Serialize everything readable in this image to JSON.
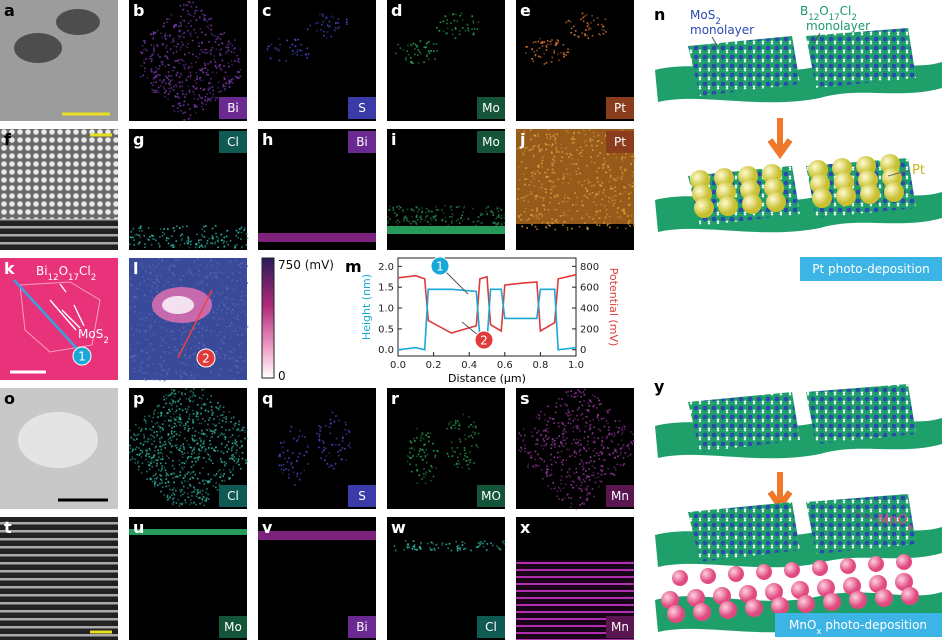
{
  "panel_labels": [
    "a",
    "b",
    "c",
    "d",
    "e",
    "f",
    "g",
    "h",
    "i",
    "j",
    "k",
    "l",
    "m",
    "o",
    "p",
    "q",
    "r",
    "s",
    "t",
    "u",
    "v",
    "w",
    "x",
    "n",
    "y"
  ],
  "element_tags": [
    {
      "text": "Bi",
      "color": "#6a2a92"
    },
    {
      "text": "S",
      "color": "#3a3aa8"
    },
    {
      "text": "Mo",
      "color": "#14553a"
    },
    {
      "text": "Pt",
      "color": "#8a3c1c"
    },
    {
      "text": "Cl",
      "color": "#0f5a52"
    },
    {
      "text": "Bi",
      "color": "#6a2a92"
    },
    {
      "text": "Mo",
      "color": "#14553a"
    },
    {
      "text": "Pt",
      "color": "#8a3c1c"
    },
    {
      "text": "Cl",
      "color": "#0f5a52"
    },
    {
      "text": "S",
      "color": "#3a3aa8"
    },
    {
      "text": "MO",
      "color": "#14553a"
    },
    {
      "text": "Mn",
      "color": "#5a1650"
    },
    {
      "text": "Mo",
      "color": "#14553a"
    },
    {
      "text": "Bi",
      "color": "#6a2a92"
    },
    {
      "text": "Cl",
      "color": "#0f5a52"
    },
    {
      "text": "Mn",
      "color": "#5a1650"
    }
  ],
  "k": {
    "bi_formula": [
      "Bi",
      "12",
      "O",
      "17",
      "Cl",
      "2"
    ],
    "mos2_formula": [
      "MoS",
      "2"
    ],
    "marker": "1"
  },
  "l": {
    "colorbar_max": "750 (mV)",
    "colorbar_min": "0",
    "marker": "2"
  },
  "m": {
    "xlabel": "Distance (μm)",
    "ylabel": "Height (nm)",
    "y2label": "Potential (mV)",
    "xlim": [
      0,
      1
    ],
    "ylim": [
      -0.15,
      2.2
    ],
    "y2lim": [
      -60,
      880
    ],
    "xticks": [
      {
        "value": 0,
        "label": "0.0"
      },
      {
        "value": 0.2,
        "label": "0.2"
      },
      {
        "value": 0.4,
        "label": "0.4"
      },
      {
        "value": 0.6,
        "label": "0.6"
      },
      {
        "value": 0.8,
        "label": "0.8"
      },
      {
        "value": 1,
        "label": "1.0"
      }
    ],
    "yticks": [
      {
        "value": 0,
        "label": "0.0"
      },
      {
        "value": 0.5,
        "label": "0.5"
      },
      {
        "value": 1,
        "label": "1.0"
      },
      {
        "value": 1.5,
        "label": "1.5"
      },
      {
        "value": 2,
        "label": "2.0"
      }
    ],
    "y2ticks": [
      0,
      200,
      400,
      600,
      800
    ],
    "x": [
      0,
      0.1,
      0.15,
      0.17,
      0.3,
      0.44,
      0.46,
      0.5,
      0.52,
      0.58,
      0.6,
      0.7,
      0.78,
      0.8,
      0.88,
      0.9,
      1.0
    ],
    "height": {
      "color": "#1aa8d8",
      "values": [
        0.0,
        0.05,
        0.0,
        1.45,
        1.45,
        1.4,
        0.3,
        0.2,
        1.45,
        1.45,
        0.75,
        0.75,
        0.75,
        1.45,
        1.45,
        0.0,
        0.05
      ]
    },
    "potential": {
      "color": "#e03a3a",
      "values": [
        690,
        710,
        680,
        280,
        160,
        230,
        680,
        700,
        240,
        180,
        620,
        640,
        650,
        180,
        260,
        680,
        720
      ]
    },
    "markers": [
      "1",
      "2"
    ]
  },
  "n": {
    "mos2_formula": [
      "MoS",
      "2"
    ],
    "mos2_word": "monolayer",
    "bocl_formula": [
      "B",
      "12",
      "O",
      "17",
      "Cl",
      "2"
    ],
    "bocl_word": "monolayer",
    "pt_label": "Pt",
    "caption": "Pt photo-deposition"
  },
  "y": {
    "mnox_formula": [
      "MnO",
      "x"
    ],
    "caption_formula": [
      "MnO",
      "x",
      " photo-deposition"
    ]
  }
}
